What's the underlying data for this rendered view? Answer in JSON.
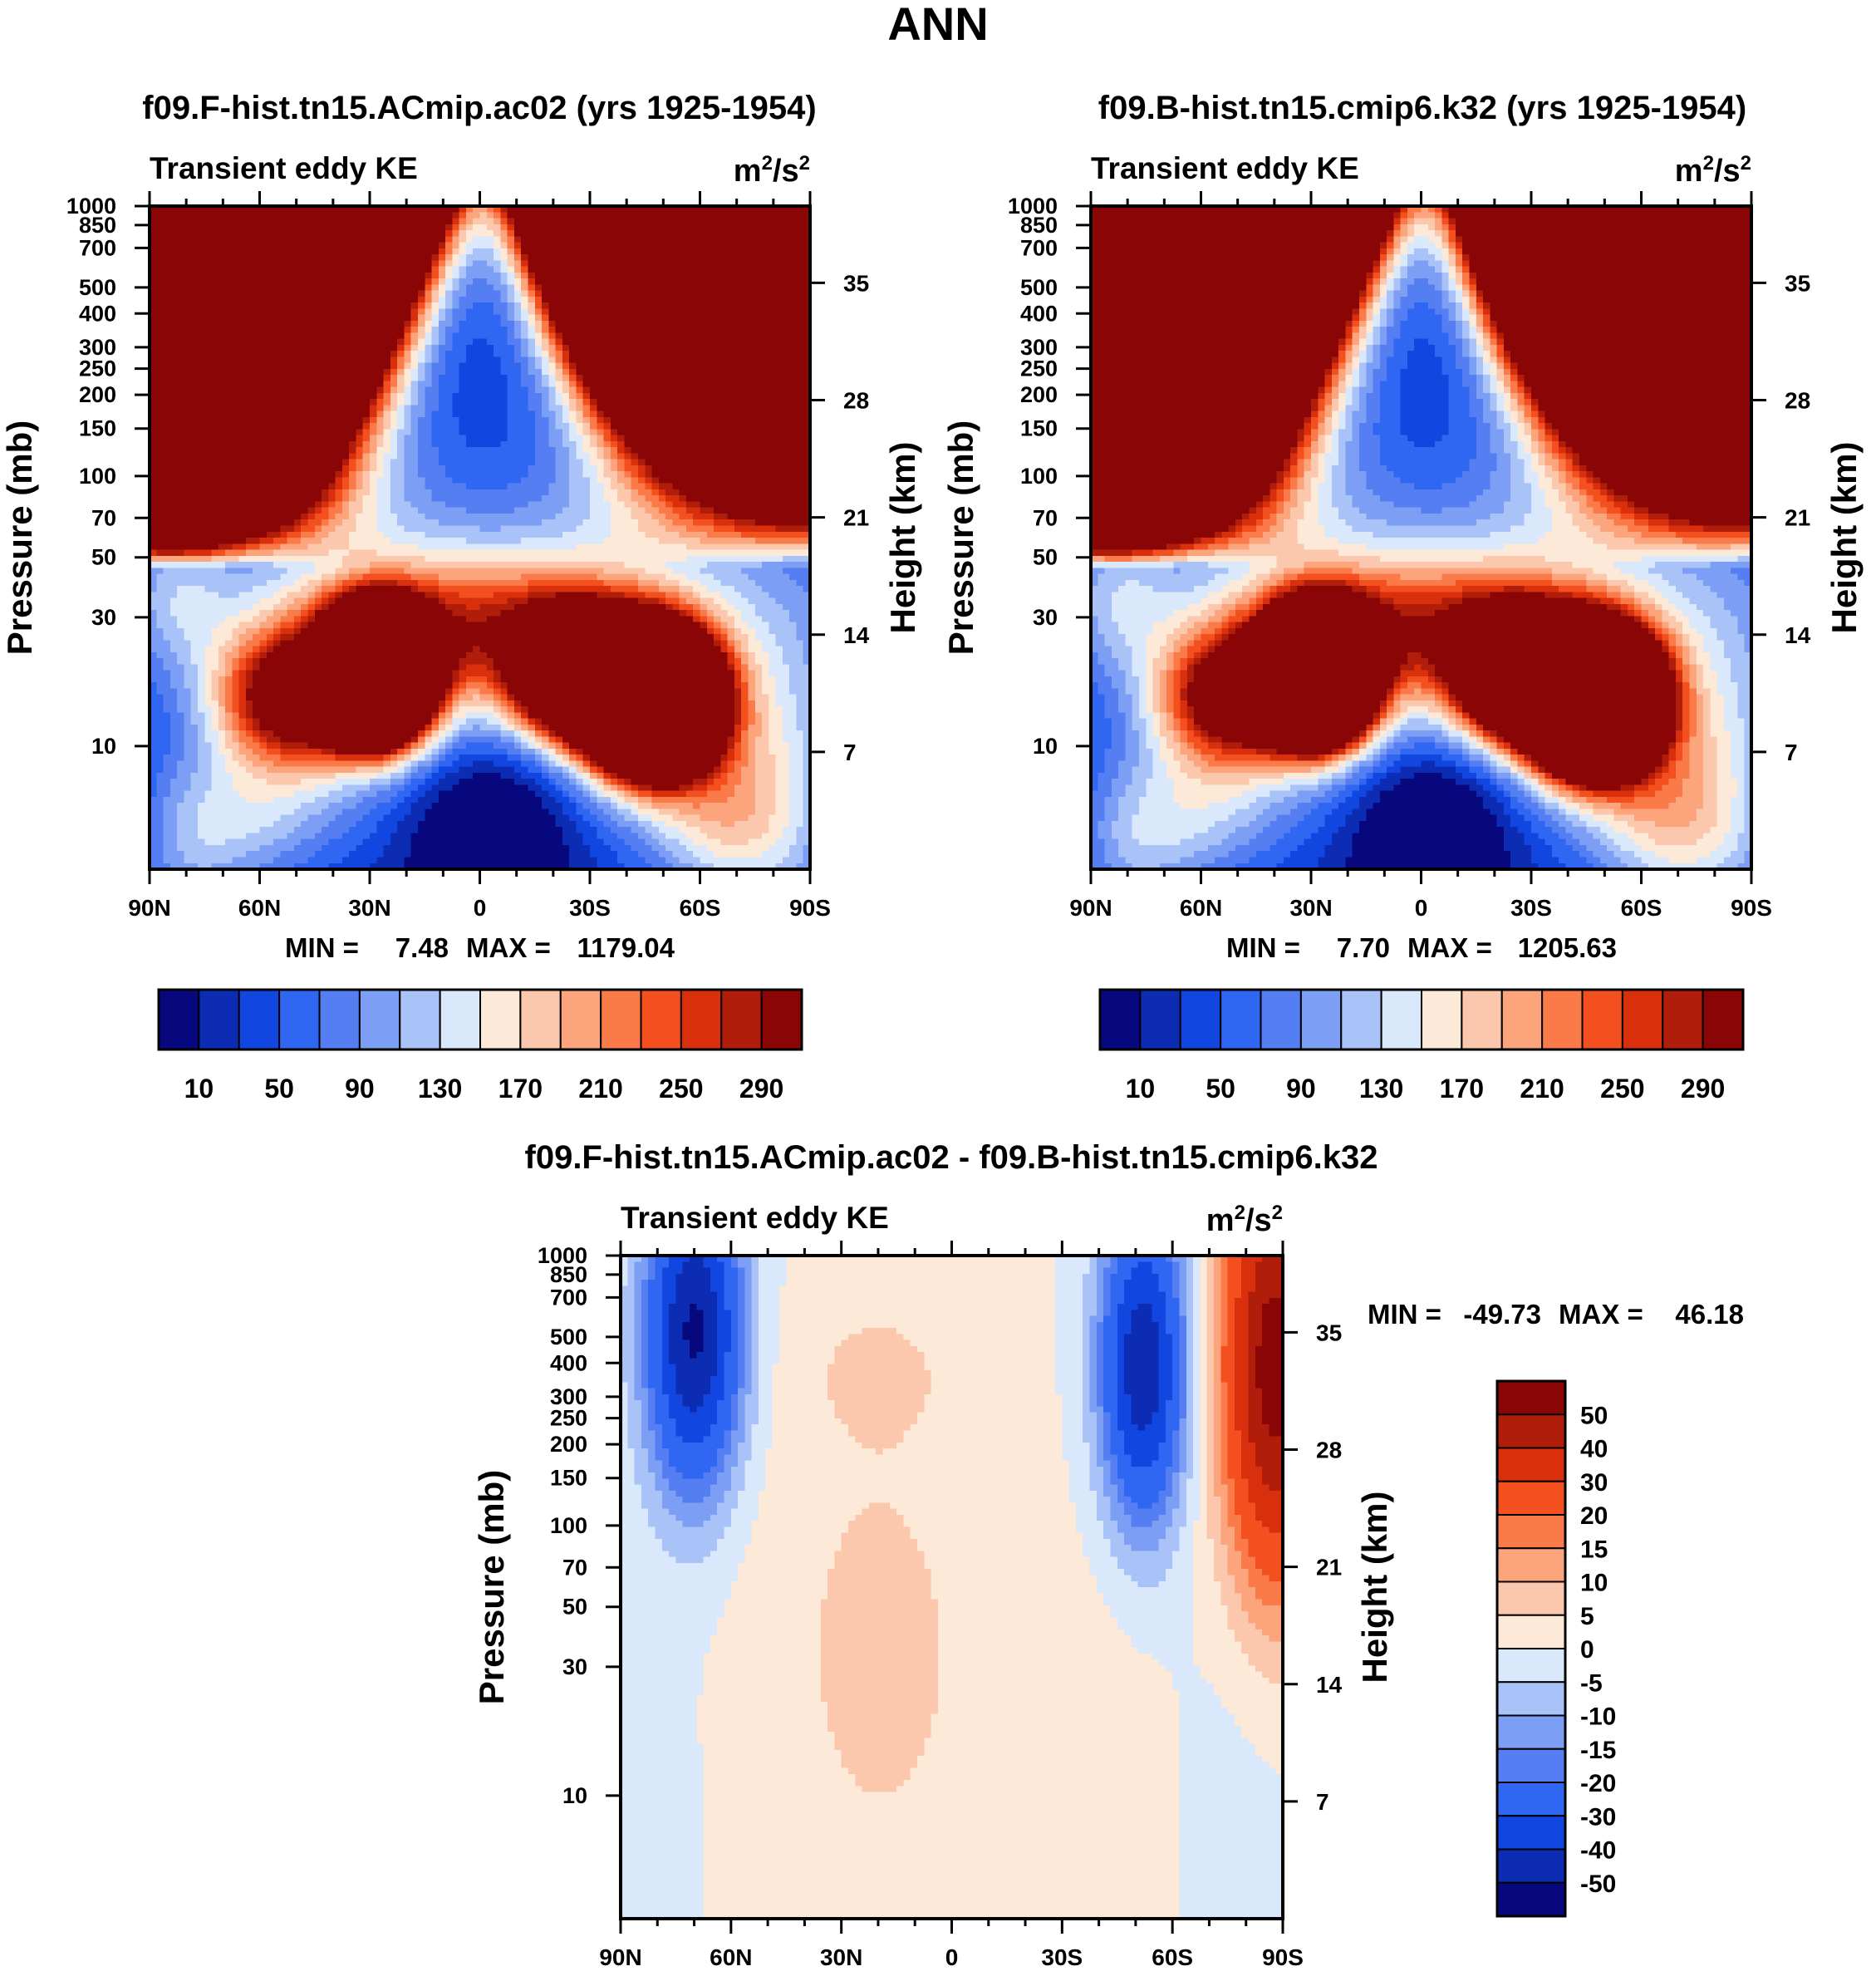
{
  "figure_title": "ANN",
  "chart_data": [
    {
      "id": "p1",
      "type": "heatmap",
      "title": "f09.F-hist.tn15.ACmip.ac02 (yrs 1925-1954)",
      "left_label": "Transient eddy KE",
      "units": {
        "base": "m",
        "exp1": "2",
        "mid": "/s",
        "exp2": "2"
      },
      "ylabel": "Pressure (mb)",
      "y2label": "Height (km)",
      "x_range": [
        -90,
        90
      ],
      "x_ticks": [
        {
          "v": -90,
          "label": "90N"
        },
        {
          "v": -60,
          "label": "60N"
        },
        {
          "v": -30,
          "label": "30N"
        },
        {
          "v": 0,
          "label": "0"
        },
        {
          "v": 30,
          "label": "30S"
        },
        {
          "v": 60,
          "label": "60S"
        },
        {
          "v": 90,
          "label": "90S"
        }
      ],
      "p_range": [
        1000,
        3.5
      ],
      "p_ticks": [
        {
          "v": 10,
          "label": "10"
        },
        {
          "v": 30,
          "label": "30"
        },
        {
          "v": 50,
          "label": "50"
        },
        {
          "v": 70,
          "label": "70"
        },
        {
          "v": 100,
          "label": "100"
        },
        {
          "v": 150,
          "label": "150"
        },
        {
          "v": 200,
          "label": "200"
        },
        {
          "v": 250,
          "label": "250"
        },
        {
          "v": 300,
          "label": "300"
        },
        {
          "v": 400,
          "label": "400"
        },
        {
          "v": 500,
          "label": "500"
        },
        {
          "v": 700,
          "label": "700"
        },
        {
          "v": 850,
          "label": "850"
        },
        {
          "v": 1000,
          "label": "1000"
        }
      ],
      "z_ticks": [
        {
          "v": 35,
          "label": "35"
        },
        {
          "v": 28,
          "label": "28"
        },
        {
          "v": 21,
          "label": "21"
        },
        {
          "v": 14,
          "label": "14"
        },
        {
          "v": 7,
          "label": "7"
        }
      ],
      "stats": {
        "min_label": "MIN =",
        "min": "7.48",
        "max_label": "MAX =",
        "max": "1179.04"
      },
      "field": "full",
      "field_scale": 1.0,
      "colorbar": {
        "orientation": "horizontal",
        "levels": [
          10,
          30,
          50,
          70,
          90,
          110,
          130,
          150,
          170,
          190,
          210,
          230,
          250,
          270,
          290
        ],
        "labels": [
          "10",
          "50",
          "90",
          "130",
          "170",
          "210",
          "250",
          "290"
        ]
      }
    },
    {
      "id": "p2",
      "type": "heatmap",
      "title": "f09.B-hist.tn15.cmip6.k32 (yrs 1925-1954)",
      "left_label": "Transient eddy KE",
      "units": {
        "base": "m",
        "exp1": "2",
        "mid": "/s",
        "exp2": "2"
      },
      "ylabel": "Pressure (mb)",
      "y2label": "Height (km)",
      "x_range": [
        -90,
        90
      ],
      "x_ticks": [
        {
          "v": -90,
          "label": "90N"
        },
        {
          "v": -60,
          "label": "60N"
        },
        {
          "v": -30,
          "label": "30N"
        },
        {
          "v": 0,
          "label": "0"
        },
        {
          "v": 30,
          "label": "30S"
        },
        {
          "v": 60,
          "label": "60S"
        },
        {
          "v": 90,
          "label": "90S"
        }
      ],
      "p_range": [
        1000,
        3.5
      ],
      "p_ticks": [
        {
          "v": 10,
          "label": "10"
        },
        {
          "v": 30,
          "label": "30"
        },
        {
          "v": 50,
          "label": "50"
        },
        {
          "v": 70,
          "label": "70"
        },
        {
          "v": 100,
          "label": "100"
        },
        {
          "v": 150,
          "label": "150"
        },
        {
          "v": 200,
          "label": "200"
        },
        {
          "v": 250,
          "label": "250"
        },
        {
          "v": 300,
          "label": "300"
        },
        {
          "v": 400,
          "label": "400"
        },
        {
          "v": 500,
          "label": "500"
        },
        {
          "v": 700,
          "label": "700"
        },
        {
          "v": 850,
          "label": "850"
        },
        {
          "v": 1000,
          "label": "1000"
        }
      ],
      "z_ticks": [
        {
          "v": 35,
          "label": "35"
        },
        {
          "v": 28,
          "label": "28"
        },
        {
          "v": 21,
          "label": "21"
        },
        {
          "v": 14,
          "label": "14"
        },
        {
          "v": 7,
          "label": "7"
        }
      ],
      "stats": {
        "min_label": "MIN =",
        "min": "7.70",
        "max_label": "MAX =",
        "max": "1205.63"
      },
      "field": "full",
      "field_scale": 1.02,
      "colorbar": {
        "orientation": "horizontal",
        "levels": [
          10,
          30,
          50,
          70,
          90,
          110,
          130,
          150,
          170,
          190,
          210,
          230,
          250,
          270,
          290
        ],
        "labels": [
          "10",
          "50",
          "90",
          "130",
          "170",
          "210",
          "250",
          "290"
        ]
      }
    },
    {
      "id": "p3",
      "type": "heatmap",
      "title": "f09.F-hist.tn15.ACmip.ac02 - f09.B-hist.tn15.cmip6.k32",
      "left_label": "Transient eddy KE",
      "units": {
        "base": "m",
        "exp1": "2",
        "mid": "/s",
        "exp2": "2"
      },
      "ylabel": "Pressure (mb)",
      "y2label": "Height (km)",
      "x_range": [
        -90,
        90
      ],
      "x_ticks": [
        {
          "v": -90,
          "label": "90N"
        },
        {
          "v": -60,
          "label": "60N"
        },
        {
          "v": -30,
          "label": "30N"
        },
        {
          "v": 0,
          "label": "0"
        },
        {
          "v": 30,
          "label": "30S"
        },
        {
          "v": 60,
          "label": "60S"
        },
        {
          "v": 90,
          "label": "90S"
        }
      ],
      "p_range": [
        1000,
        3.5
      ],
      "p_ticks": [
        {
          "v": 10,
          "label": "10"
        },
        {
          "v": 30,
          "label": "30"
        },
        {
          "v": 50,
          "label": "50"
        },
        {
          "v": 70,
          "label": "70"
        },
        {
          "v": 100,
          "label": "100"
        },
        {
          "v": 150,
          "label": "150"
        },
        {
          "v": 200,
          "label": "200"
        },
        {
          "v": 250,
          "label": "250"
        },
        {
          "v": 300,
          "label": "300"
        },
        {
          "v": 400,
          "label": "400"
        },
        {
          "v": 500,
          "label": "500"
        },
        {
          "v": 700,
          "label": "700"
        },
        {
          "v": 850,
          "label": "850"
        },
        {
          "v": 1000,
          "label": "1000"
        }
      ],
      "z_ticks": [
        {
          "v": 35,
          "label": "35"
        },
        {
          "v": 28,
          "label": "28"
        },
        {
          "v": 21,
          "label": "21"
        },
        {
          "v": 14,
          "label": "14"
        },
        {
          "v": 7,
          "label": "7"
        }
      ],
      "stats": {
        "min_label": "MIN =",
        "min": "-49.73",
        "max_label": "MAX =",
        "max": "46.18"
      },
      "field": "diff",
      "field_scale": 1.0,
      "colorbar": {
        "orientation": "vertical",
        "levels": [
          -50,
          -40,
          -30,
          -20,
          -15,
          -10,
          -5,
          0,
          5,
          10,
          15,
          20,
          30,
          40,
          50
        ],
        "labels": [
          "50",
          "40",
          "30",
          "20",
          "15",
          "10",
          "5",
          "0",
          "-5",
          "-10",
          "-15",
          "-20",
          "-30",
          "-40",
          "-50"
        ]
      }
    }
  ],
  "colors": {
    "palette16": [
      "#08087e",
      "#0c2cb4",
      "#1246e0",
      "#2f66f2",
      "#557ef2",
      "#7c9ef5",
      "#a9c2f8",
      "#d9e8fb",
      "#fde9d8",
      "#fcc8ad",
      "#fca57d",
      "#fb7a4a",
      "#f4501f",
      "#d92f0c",
      "#b01d0b",
      "#8a0505"
    ]
  }
}
